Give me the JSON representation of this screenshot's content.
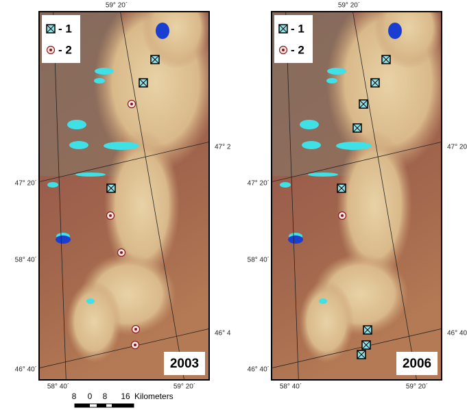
{
  "maps": [
    {
      "year": "2003",
      "legend": [
        "- 1",
        "- 2"
      ],
      "coordinates": {
        "top": "59° 20´",
        "right_upper": "47° 2",
        "left_upper": "47° 20´",
        "left_middle": "58° 40´",
        "right_lower": "46° 4",
        "left_lower": "46° 40´",
        "bottom_left": "58° 40´",
        "bottom_right": "59° 20´"
      }
    },
    {
      "year": "2006",
      "legend": [
        "- 1",
        "- 2"
      ],
      "coordinates": {
        "top": "59° 20´",
        "right_upper": "47° 20",
        "left_upper": "47° 20´",
        "left_middle": "58° 40´",
        "right_lower": "46° 40",
        "left_lower": "46° 40´",
        "bottom_left": "58° 40´",
        "bottom_right": "59° 20´"
      }
    }
  ],
  "scale_bar": {
    "ticks": [
      "8",
      "0",
      "8",
      "16"
    ],
    "unit": "Kilometers"
  }
}
